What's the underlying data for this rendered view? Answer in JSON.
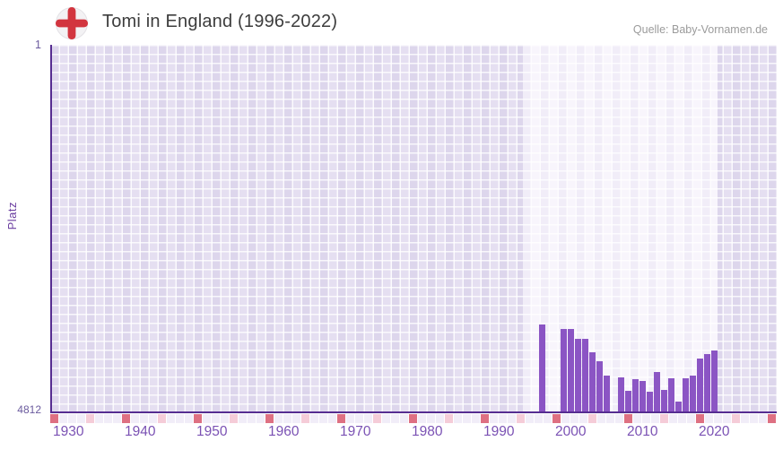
{
  "header": {
    "title": "Tomi in England (1996-2022)",
    "source": "Quelle: Baby-Vornamen.de",
    "flag_icon": "england-flag-icon"
  },
  "colors": {
    "bar": "#8b55c4",
    "axis": "#562d91",
    "tick_label": "#7b52b4",
    "flag_cross_red": "#d2353f",
    "strip_red": "#de7082",
    "strip_pink": "#f5ccd8",
    "highlight_band": "#f8f5fc",
    "grid_cell": "#e0d9ee"
  },
  "chart_data": {
    "type": "bar",
    "title": "Tomi in England (1996-2022)",
    "xlabel": "",
    "ylabel": "Platz",
    "y_axis": {
      "top_tick_label": "1",
      "bottom_tick_label": "4812",
      "min": 1,
      "max": 4812,
      "inverted": true
    },
    "x_axis": {
      "tick_labels": [
        1930,
        1940,
        1950,
        1960,
        1970,
        1980,
        1990,
        2000,
        2010,
        2020
      ],
      "visible_year_range": [
        1928,
        2029
      ],
      "highlighted_year_range": [
        1994,
        2021
      ]
    },
    "grid": true,
    "legend": false,
    "series": [
      {
        "name": "Platz",
        "points": [
          {
            "year": 1996,
            "rank": 3660
          },
          {
            "year": 1997,
            "rank": null
          },
          {
            "year": 1998,
            "rank": null
          },
          {
            "year": 1999,
            "rank": 3720
          },
          {
            "year": 2000,
            "rank": 3720
          },
          {
            "year": 2001,
            "rank": 3850
          },
          {
            "year": 2002,
            "rank": 3850
          },
          {
            "year": 2003,
            "rank": 4025
          },
          {
            "year": 2004,
            "rank": 4140
          },
          {
            "year": 2005,
            "rank": 4325
          },
          {
            "year": 2006,
            "rank": null
          },
          {
            "year": 2007,
            "rank": 4355
          },
          {
            "year": 2008,
            "rank": 4530
          },
          {
            "year": 2009,
            "rank": 4375
          },
          {
            "year": 2010,
            "rank": 4400
          },
          {
            "year": 2011,
            "rank": 4540
          },
          {
            "year": 2012,
            "rank": 4285
          },
          {
            "year": 2013,
            "rank": 4515
          },
          {
            "year": 2014,
            "rank": 4365
          },
          {
            "year": 2015,
            "rank": 4670
          },
          {
            "year": 2016,
            "rank": 4370
          },
          {
            "year": 2017,
            "rank": 4335
          },
          {
            "year": 2018,
            "rank": 4105
          },
          {
            "year": 2019,
            "rank": 4050
          },
          {
            "year": 2020,
            "rank": 4000
          },
          {
            "year": 2021,
            "rank": null
          },
          {
            "year": 2022,
            "rank": null
          }
        ]
      }
    ]
  }
}
